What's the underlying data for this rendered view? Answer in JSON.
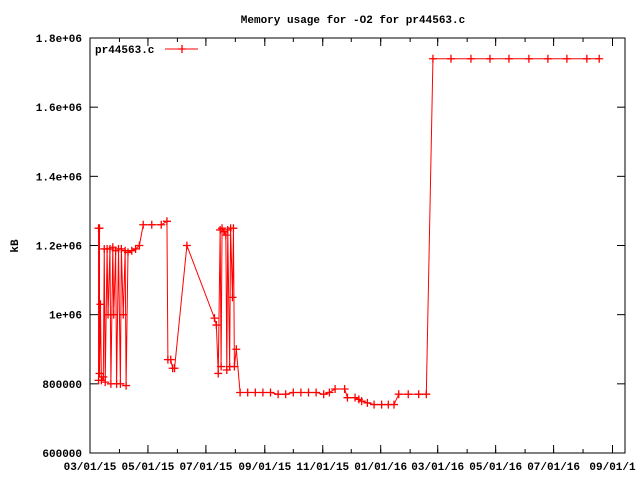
{
  "chart_data": {
    "type": "line",
    "title": "Memory usage for -O2 for pr44563.c",
    "xlabel": "",
    "ylabel": "kB",
    "xlim": [
      "2015-03-01",
      "2016-09-13"
    ],
    "ylim": [
      600000,
      1800000
    ],
    "grid": false,
    "legend_placement": "top-left",
    "x_tick_labels": [
      "03/01/15",
      "05/01/15",
      "07/01/15",
      "09/01/15",
      "11/01/15",
      "01/01/16",
      "03/01/16",
      "05/01/16",
      "07/01/16",
      "09/01/1"
    ],
    "x_tick_dates": [
      "2015-03-01",
      "2015-05-01",
      "2015-07-01",
      "2015-09-01",
      "2015-11-01",
      "2016-01-01",
      "2016-03-01",
      "2016-05-01",
      "2016-07-01",
      "2016-09-01"
    ],
    "y_tick_labels": [
      "600000",
      "800000",
      "1e+06",
      "1.2e+06",
      "1.4e+06",
      "1.6e+06",
      "1.8e+06"
    ],
    "y_tick_values": [
      600000,
      800000,
      1000000,
      1200000,
      1400000,
      1600000,
      1800000
    ],
    "series": [
      {
        "name": "pr44563.c",
        "color": "#ff0000",
        "marker": "plus",
        "points": [
          [
            "2015-03-10",
            1250000
          ],
          [
            "2015-03-10",
            810000
          ],
          [
            "2015-03-11",
            1250000
          ],
          [
            "2015-03-11",
            830000
          ],
          [
            "2015-03-12",
            1030000
          ],
          [
            "2015-03-13",
            810000
          ],
          [
            "2015-03-15",
            820000
          ],
          [
            "2015-03-16",
            1190000
          ],
          [
            "2015-03-17",
            805000
          ],
          [
            "2015-03-19",
            1190000
          ],
          [
            "2015-03-20",
            1000000
          ],
          [
            "2015-03-22",
            1190000
          ],
          [
            "2015-03-23",
            800000
          ],
          [
            "2015-03-25",
            1195000
          ],
          [
            "2015-03-26",
            1000000
          ],
          [
            "2015-03-28",
            1185000
          ],
          [
            "2015-03-29",
            800000
          ],
          [
            "2015-03-31",
            1190000
          ],
          [
            "2015-04-02",
            800000
          ],
          [
            "2015-04-03",
            1190000
          ],
          [
            "2015-04-05",
            1000000
          ],
          [
            "2015-04-07",
            1185000
          ],
          [
            "2015-04-08",
            795000
          ],
          [
            "2015-04-10",
            1180000
          ],
          [
            "2015-04-14",
            1185000
          ],
          [
            "2015-04-18",
            1190000
          ],
          [
            "2015-04-22",
            1200000
          ],
          [
            "2015-04-26",
            1260000
          ],
          [
            "2015-05-05",
            1260000
          ],
          [
            "2015-05-15",
            1260000
          ],
          [
            "2015-05-21",
            1270000
          ],
          [
            "2015-05-22",
            870000
          ],
          [
            "2015-05-25",
            870000
          ],
          [
            "2015-05-27",
            845000
          ],
          [
            "2015-05-29",
            845000
          ],
          [
            "2015-06-11",
            1200000
          ],
          [
            "2015-07-10",
            990000
          ],
          [
            "2015-07-12",
            970000
          ],
          [
            "2015-07-14",
            830000
          ],
          [
            "2015-07-16",
            1245000
          ],
          [
            "2015-07-17",
            850000
          ],
          [
            "2015-07-18",
            1250000
          ],
          [
            "2015-07-20",
            1240000
          ],
          [
            "2015-07-22",
            1230000
          ],
          [
            "2015-07-23",
            840000
          ],
          [
            "2015-07-24",
            1245000
          ],
          [
            "2015-07-26",
            850000
          ],
          [
            "2015-07-27",
            1250000
          ],
          [
            "2015-07-29",
            1050000
          ],
          [
            "2015-07-30",
            1250000
          ],
          [
            "2015-07-31",
            850000
          ],
          [
            "2015-08-02",
            900000
          ],
          [
            "2015-08-06",
            775000
          ],
          [
            "2015-08-14",
            775000
          ],
          [
            "2015-08-22",
            775000
          ],
          [
            "2015-08-30",
            775000
          ],
          [
            "2015-09-07",
            775000
          ],
          [
            "2015-09-15",
            770000
          ],
          [
            "2015-09-23",
            770000
          ],
          [
            "2015-10-01",
            775000
          ],
          [
            "2015-10-09",
            775000
          ],
          [
            "2015-10-17",
            775000
          ],
          [
            "2015-10-25",
            775000
          ],
          [
            "2015-11-02",
            770000
          ],
          [
            "2015-11-08",
            775000
          ],
          [
            "2015-11-14",
            785000
          ],
          [
            "2015-11-24",
            785000
          ],
          [
            "2015-11-27",
            760000
          ],
          [
            "2015-12-05",
            760000
          ],
          [
            "2015-12-09",
            755000
          ],
          [
            "2015-12-12",
            750000
          ],
          [
            "2015-12-18",
            745000
          ],
          [
            "2015-12-25",
            740000
          ],
          [
            "2016-01-02",
            740000
          ],
          [
            "2016-01-09",
            740000
          ],
          [
            "2016-01-15",
            740000
          ],
          [
            "2016-01-20",
            770000
          ],
          [
            "2016-01-30",
            770000
          ],
          [
            "2016-02-10",
            770000
          ],
          [
            "2016-02-18",
            770000
          ],
          [
            "2016-02-25",
            1740000
          ],
          [
            "2016-03-15",
            1740000
          ],
          [
            "2016-04-05",
            1740000
          ],
          [
            "2016-04-25",
            1740000
          ],
          [
            "2016-05-15",
            1740000
          ],
          [
            "2016-06-05",
            1740000
          ],
          [
            "2016-06-25",
            1740000
          ],
          [
            "2016-07-15",
            1740000
          ],
          [
            "2016-08-05",
            1740000
          ],
          [
            "2016-08-18",
            1740000
          ]
        ]
      }
    ]
  }
}
